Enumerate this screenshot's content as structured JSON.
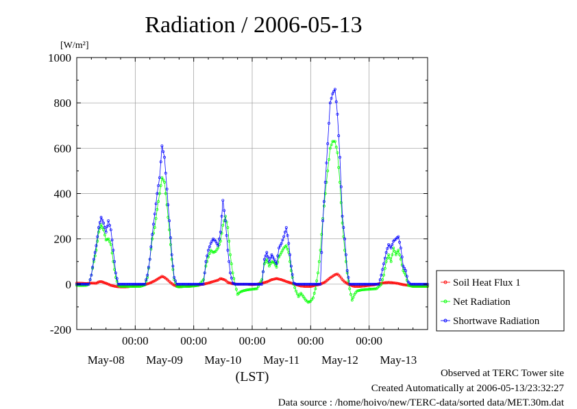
{
  "chart_data": {
    "type": "line",
    "title": "Radiation / 2006-05-13",
    "ylabel": "[W/m²]",
    "xlabel": "(LST)",
    "ylim": [
      -200,
      1000
    ],
    "yticks": [
      -200,
      0,
      200,
      400,
      600,
      800,
      1000
    ],
    "xlim_hours": [
      0,
      144
    ],
    "xtick_time_labels": [
      "00:00",
      "00:00",
      "00:00",
      "00:00",
      "00:00"
    ],
    "xtick_date_labels": [
      "May-08",
      "May-09",
      "May-10",
      "May-11",
      "May-12",
      "May-13"
    ],
    "grid": true,
    "legend_position": "right",
    "x_unit": "hours since 2006-05-08 00:00 LST",
    "series": [
      {
        "name": "Soil Heat Flux 1",
        "color": "#ff0000",
        "points": [
          [
            0,
            5
          ],
          [
            4,
            3
          ],
          [
            6,
            5
          ],
          [
            8,
            4
          ],
          [
            9,
            10
          ],
          [
            10,
            12
          ],
          [
            11,
            8
          ],
          [
            12,
            4
          ],
          [
            13,
            0
          ],
          [
            14,
            -5
          ],
          [
            16,
            -10
          ],
          [
            18,
            -12
          ],
          [
            20,
            -12
          ],
          [
            22,
            -10
          ],
          [
            24,
            -7
          ],
          [
            26,
            -5
          ],
          [
            28,
            -2
          ],
          [
            30,
            5
          ],
          [
            32,
            15
          ],
          [
            34,
            28
          ],
          [
            35,
            35
          ],
          [
            36,
            30
          ],
          [
            37,
            22
          ],
          [
            38,
            12
          ],
          [
            39,
            3
          ],
          [
            40,
            -5
          ],
          [
            42,
            -10
          ],
          [
            44,
            -10
          ],
          [
            46,
            -8
          ],
          [
            48,
            -5
          ],
          [
            50,
            -3
          ],
          [
            52,
            0
          ],
          [
            54,
            5
          ],
          [
            56,
            12
          ],
          [
            58,
            18
          ],
          [
            59,
            25
          ],
          [
            60,
            22
          ],
          [
            61,
            18
          ],
          [
            62,
            8
          ],
          [
            64,
            2
          ],
          [
            66,
            0
          ],
          [
            68,
            0
          ],
          [
            70,
            0
          ],
          [
            72,
            -2
          ],
          [
            74,
            0
          ],
          [
            76,
            5
          ],
          [
            78,
            10
          ],
          [
            80,
            20
          ],
          [
            82,
            25
          ],
          [
            84,
            20
          ],
          [
            86,
            12
          ],
          [
            88,
            5
          ],
          [
            90,
            -2
          ],
          [
            92,
            -8
          ],
          [
            94,
            -10
          ],
          [
            96,
            -10
          ],
          [
            98,
            -5
          ],
          [
            100,
            0
          ],
          [
            102,
            10
          ],
          [
            104,
            28
          ],
          [
            106,
            42
          ],
          [
            107,
            45
          ],
          [
            108,
            35
          ],
          [
            109,
            20
          ],
          [
            110,
            10
          ],
          [
            112,
            -3
          ],
          [
            114,
            -10
          ],
          [
            116,
            -10
          ],
          [
            118,
            -8
          ],
          [
            120,
            -5
          ],
          [
            122,
            -3
          ],
          [
            124,
            2
          ],
          [
            126,
            6
          ],
          [
            128,
            8
          ],
          [
            130,
            6
          ],
          [
            132,
            3
          ],
          [
            134,
            -2
          ],
          [
            136,
            -5
          ],
          [
            138,
            -8
          ],
          [
            140,
            -8
          ],
          [
            142,
            -8
          ],
          [
            144,
            -8
          ]
        ]
      },
      {
        "name": "Net Radiation",
        "color": "#00ff00",
        "points": [
          [
            0,
            -5
          ],
          [
            2,
            -6
          ],
          [
            4,
            -5
          ],
          [
            5,
            0
          ],
          [
            6,
            40
          ],
          [
            7,
            100
          ],
          [
            8,
            150
          ],
          [
            9,
            230
          ],
          [
            10,
            262
          ],
          [
            11,
            240
          ],
          [
            12,
            195
          ],
          [
            13,
            200
          ],
          [
            14,
            175
          ],
          [
            15,
            100
          ],
          [
            16,
            30
          ],
          [
            17,
            -5
          ],
          [
            18,
            -10
          ],
          [
            20,
            -10
          ],
          [
            22,
            -10
          ],
          [
            24,
            -10
          ],
          [
            26,
            -10
          ],
          [
            28,
            -3
          ],
          [
            29,
            30
          ],
          [
            30,
            110
          ],
          [
            31,
            200
          ],
          [
            32,
            250
          ],
          [
            33,
            330
          ],
          [
            34,
            400
          ],
          [
            35,
            470
          ],
          [
            36,
            450
          ],
          [
            37,
            350
          ],
          [
            38,
            240
          ],
          [
            39,
            110
          ],
          [
            40,
            20
          ],
          [
            41,
            -10
          ],
          [
            42,
            -12
          ],
          [
            44,
            -10
          ],
          [
            46,
            -10
          ],
          [
            48,
            -8
          ],
          [
            50,
            -5
          ],
          [
            52,
            20
          ],
          [
            53,
            80
          ],
          [
            54,
            120
          ],
          [
            55,
            150
          ],
          [
            56,
            140
          ],
          [
            57,
            145
          ],
          [
            58,
            160
          ],
          [
            59,
            190
          ],
          [
            60,
            260
          ],
          [
            61,
            300
          ],
          [
            62,
            250
          ],
          [
            63,
            130
          ],
          [
            64,
            50
          ],
          [
            65,
            0
          ],
          [
            66,
            -45
          ],
          [
            67,
            -35
          ],
          [
            68,
            -30
          ],
          [
            70,
            -25
          ],
          [
            72,
            -22
          ],
          [
            74,
            -20
          ],
          [
            76,
            20
          ],
          [
            77,
            90
          ],
          [
            78,
            110
          ],
          [
            79,
            80
          ],
          [
            80,
            100
          ],
          [
            81,
            95
          ],
          [
            82,
            75
          ],
          [
            83,
            120
          ],
          [
            84,
            140
          ],
          [
            85,
            160
          ],
          [
            86,
            170
          ],
          [
            87,
            140
          ],
          [
            88,
            60
          ],
          [
            89,
            0
          ],
          [
            90,
            -30
          ],
          [
            91,
            -55
          ],
          [
            92,
            -40
          ],
          [
            93,
            -55
          ],
          [
            94,
            -70
          ],
          [
            95,
            -80
          ],
          [
            96,
            -75
          ],
          [
            97,
            -60
          ],
          [
            98,
            -20
          ],
          [
            99,
            50
          ],
          [
            100,
            150
          ],
          [
            101,
            290
          ],
          [
            102,
            400
          ],
          [
            103,
            500
          ],
          [
            104,
            600
          ],
          [
            105,
            630
          ],
          [
            106,
            630
          ],
          [
            107,
            580
          ],
          [
            108,
            450
          ],
          [
            109,
            270
          ],
          [
            110,
            150
          ],
          [
            111,
            50
          ],
          [
            112,
            -20
          ],
          [
            113,
            -70
          ],
          [
            114,
            -45
          ],
          [
            115,
            -30
          ],
          [
            117,
            -25
          ],
          [
            120,
            -22
          ],
          [
            123,
            -20
          ],
          [
            125,
            0
          ],
          [
            126,
            40
          ],
          [
            127,
            100
          ],
          [
            128,
            130
          ],
          [
            129,
            100
          ],
          [
            130,
            160
          ],
          [
            131,
            130
          ],
          [
            132,
            150
          ],
          [
            133,
            110
          ],
          [
            134,
            60
          ],
          [
            135,
            40
          ],
          [
            136,
            -5
          ],
          [
            138,
            -10
          ],
          [
            140,
            -10
          ],
          [
            142,
            -10
          ],
          [
            144,
            -10
          ]
        ]
      },
      {
        "name": "Shortwave Radiation",
        "color": "#0000ff",
        "points": [
          [
            0,
            0
          ],
          [
            5,
            0
          ],
          [
            6,
            40
          ],
          [
            7,
            110
          ],
          [
            8,
            170
          ],
          [
            9,
            250
          ],
          [
            10,
            295
          ],
          [
            11,
            270
          ],
          [
            12,
            230
          ],
          [
            13,
            280
          ],
          [
            14,
            240
          ],
          [
            15,
            150
          ],
          [
            16,
            50
          ],
          [
            17,
            0
          ],
          [
            24,
            0
          ],
          [
            28,
            0
          ],
          [
            29,
            40
          ],
          [
            30,
            110
          ],
          [
            31,
            220
          ],
          [
            32,
            310
          ],
          [
            33,
            400
          ],
          [
            34,
            470
          ],
          [
            35,
            610
          ],
          [
            36,
            560
          ],
          [
            37,
            420
          ],
          [
            38,
            280
          ],
          [
            39,
            130
          ],
          [
            40,
            30
          ],
          [
            41,
            0
          ],
          [
            48,
            0
          ],
          [
            52,
            0
          ],
          [
            53,
            100
          ],
          [
            54,
            150
          ],
          [
            55,
            180
          ],
          [
            56,
            200
          ],
          [
            57,
            190
          ],
          [
            58,
            170
          ],
          [
            59,
            230
          ],
          [
            60,
            370
          ],
          [
            61,
            280
          ],
          [
            62,
            150
          ],
          [
            63,
            50
          ],
          [
            64,
            5
          ],
          [
            65,
            0
          ],
          [
            72,
            0
          ],
          [
            76,
            0
          ],
          [
            77,
            110
          ],
          [
            78,
            140
          ],
          [
            79,
            100
          ],
          [
            80,
            130
          ],
          [
            81,
            110
          ],
          [
            82,
            90
          ],
          [
            83,
            160
          ],
          [
            84,
            180
          ],
          [
            85,
            210
          ],
          [
            86,
            250
          ],
          [
            87,
            180
          ],
          [
            88,
            80
          ],
          [
            89,
            5
          ],
          [
            90,
            0
          ],
          [
            96,
            0
          ],
          [
            100,
            0
          ],
          [
            101,
            280
          ],
          [
            102,
            450
          ],
          [
            103,
            620
          ],
          [
            104,
            800
          ],
          [
            105,
            840
          ],
          [
            106,
            860
          ],
          [
            107,
            750
          ],
          [
            108,
            560
          ],
          [
            109,
            300
          ],
          [
            110,
            200
          ],
          [
            111,
            60
          ],
          [
            112,
            0
          ],
          [
            120,
            0
          ],
          [
            124,
            0
          ],
          [
            125,
            40
          ],
          [
            126,
            90
          ],
          [
            127,
            140
          ],
          [
            128,
            175
          ],
          [
            129,
            160
          ],
          [
            130,
            190
          ],
          [
            131,
            200
          ],
          [
            132,
            210
          ],
          [
            133,
            160
          ],
          [
            134,
            80
          ],
          [
            135,
            60
          ],
          [
            136,
            10
          ],
          [
            137,
            0
          ],
          [
            144,
            0
          ]
        ]
      }
    ]
  },
  "footer": {
    "line1": "Observed at TERC Tower site",
    "line2": "Created Automatically at 2006-05-13/23:32:27",
    "line3": "Data source : /home/hoivo/new/TERC-data/sorted data/MET.30m.dat"
  }
}
